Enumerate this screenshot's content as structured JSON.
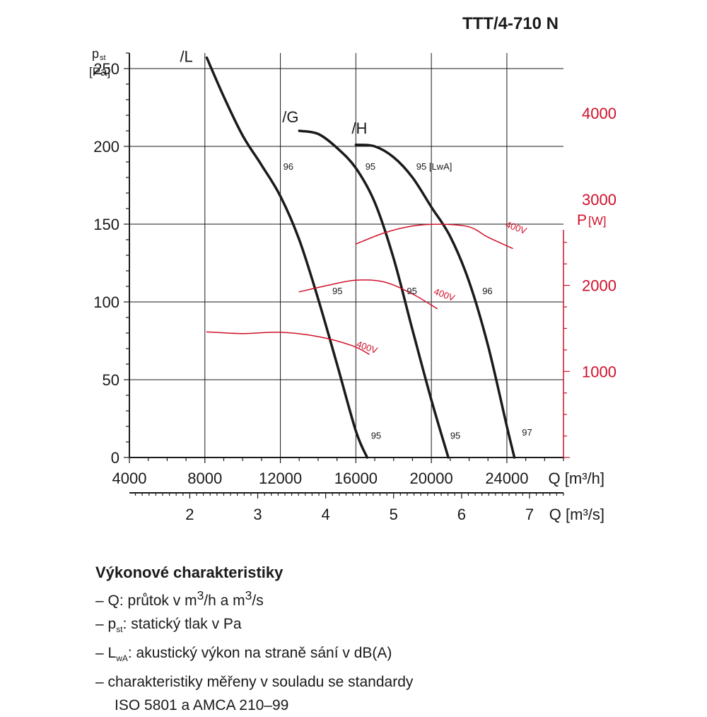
{
  "title": "TTT/4-710 N",
  "chart_data": {
    "type": "line",
    "title": "TTT/4-710 N",
    "y_axis": {
      "label_main": "p",
      "label_sub": "st",
      "unit": "[Pa]",
      "range": [
        0,
        260
      ],
      "ticks": [
        0,
        50,
        100,
        150,
        200,
        250
      ]
    },
    "y2_axis": {
      "label_main": "P",
      "unit": "[W]",
      "range": [
        0,
        4700
      ],
      "ticks": [
        1000,
        2000,
        3000,
        4000
      ],
      "color": "#d0102a"
    },
    "x_axis": {
      "label": "Q [m³/h]",
      "range": [
        4000,
        27000
      ],
      "ticks": [
        4000,
        8000,
        12000,
        16000,
        20000,
        24000
      ],
      "tick_labels": [
        "4000",
        "8000",
        "12000",
        "16000",
        "20000",
        "24000"
      ]
    },
    "x2_axis": {
      "label": "Q [m³/s]",
      "ticks": [
        2,
        3,
        4,
        5,
        6,
        7
      ],
      "tick_labels": [
        "2",
        "3",
        "4",
        "5",
        "6",
        "7"
      ]
    },
    "grid": true,
    "series": [
      {
        "name": "/L",
        "color": "#1a1a1a",
        "axis": "y",
        "x": [
          8100,
          9000,
          10000,
          11000,
          12000,
          13000,
          14000,
          15000,
          16000,
          16600
        ],
        "y": [
          257,
          232,
          207,
          188,
          168,
          140,
          102,
          60,
          17,
          0
        ]
      },
      {
        "name": "/G",
        "color": "#1a1a1a",
        "axis": "y",
        "x": [
          13000,
          14000,
          15000,
          16000,
          17000,
          18000,
          19000,
          20000,
          20900
        ],
        "y": [
          210,
          208,
          199,
          186,
          164,
          128,
          82,
          37,
          0
        ]
      },
      {
        "name": "/H",
        "color": "#1a1a1a",
        "axis": "y",
        "x": [
          16000,
          17000,
          18000,
          19000,
          20000,
          21000,
          22000,
          23000,
          24000,
          24400
        ],
        "y": [
          201,
          200,
          193,
          180,
          161,
          142,
          113,
          72,
          20,
          0
        ]
      },
      {
        "name": "400V",
        "color": "#d0102a",
        "axis": "y2",
        "x": [
          8100,
          10000,
          12000,
          14000,
          15800,
          16700
        ],
        "y": [
          1460,
          1440,
          1455,
          1405,
          1300,
          1200
        ]
      },
      {
        "name": "400V",
        "color": "#d0102a",
        "axis": "y2",
        "x": [
          13000,
          14500,
          16000,
          17500,
          19000,
          20300
        ],
        "y": [
          1925,
          2000,
          2060,
          2040,
          1900,
          1730
        ]
      },
      {
        "name": "400V",
        "color": "#d0102a",
        "axis": "y2",
        "x": [
          16000,
          17500,
          19000,
          20500,
          22000,
          23000,
          24300
        ],
        "y": [
          2480,
          2610,
          2690,
          2710,
          2680,
          2560,
          2430
        ]
      }
    ],
    "curve_labels": [
      "/L",
      "/G",
      "/H"
    ],
    "annotations": [
      {
        "text": "96",
        "x": 12150,
        "y": 185
      },
      {
        "text": "95",
        "x": 16500,
        "y": 185
      },
      {
        "text": "95 [LwA]",
        "x": 19200,
        "y": 185
      },
      {
        "text": "95",
        "x": 14750,
        "y": 105
      },
      {
        "text": "95",
        "x": 18700,
        "y": 105
      },
      {
        "text": "96",
        "x": 22700,
        "y": 105
      },
      {
        "text": "95",
        "x": 16800,
        "y": 12
      },
      {
        "text": "95",
        "x": 21000,
        "y": 12
      },
      {
        "text": "97",
        "x": 24800,
        "y": 14
      }
    ],
    "power_labels": [
      {
        "text": "400V",
        "x": 16000,
        "y2": 1290
      },
      {
        "text": "400V",
        "x": 20100,
        "y2": 1900
      },
      {
        "text": "400V",
        "x": 23900,
        "y2": 2680
      }
    ]
  },
  "legend": {
    "heading": "Výkonové charakteristiky",
    "items": [
      {
        "dash": "–",
        "pre": "Q: průtok v m",
        "sup": "3",
        "mid": "/h a m",
        "sup2": "3",
        "post": "/s"
      },
      {
        "dash": "–",
        "pre": "p",
        "sub": "st",
        "post": ": statický tlak v Pa"
      },
      {
        "dash": "–",
        "pre": "L",
        "sub": "wA",
        "post": ": akustický výkon na straně sání v dB(A)"
      },
      {
        "dash": "–",
        "pre": "charakteristiky měřeny v souladu se standardy"
      }
    ],
    "continuation": "ISO 5801 a AMCA 210–99"
  }
}
